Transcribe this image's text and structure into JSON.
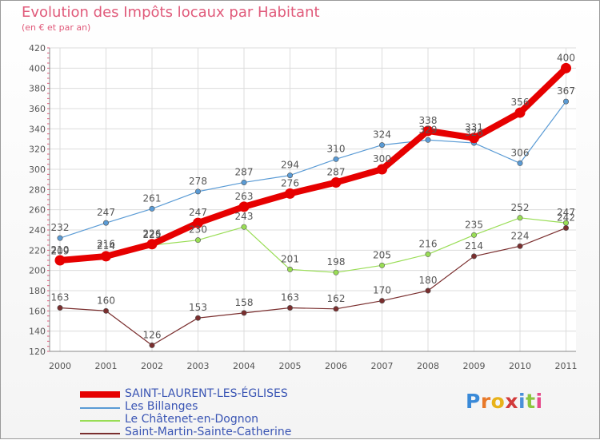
{
  "header": {
    "title": "Evolution des Impôts locaux par Habitant",
    "subtitle": "(en € et par an)"
  },
  "brand": {
    "text": "Proxiti",
    "letter_colors": [
      "#3a8ad8",
      "#e8792a",
      "#e8b21a",
      "#d23b3b",
      "#4a90d9",
      "#8cc63f",
      "#e64a8a"
    ]
  },
  "chart_data": {
    "type": "line",
    "title": "Evolution des Impôts locaux par Habitant",
    "subtitle": "(en € et par an)",
    "xlabel": "",
    "ylabel": "",
    "x": [
      "2000",
      "2001",
      "2002",
      "2003",
      "2004",
      "2005",
      "2006",
      "2007",
      "2008",
      "2009",
      "2010",
      "2011"
    ],
    "ylim": [
      120,
      420
    ],
    "yticks": [
      120,
      140,
      160,
      180,
      200,
      220,
      240,
      260,
      280,
      300,
      320,
      340,
      360,
      380,
      400,
      420
    ],
    "grid": true,
    "legend_position": "bottom-left",
    "series": [
      {
        "name": "SAINT-LAURENT-LES-ÉGLISES",
        "color": "#e60000",
        "values": [
          210,
          214,
          226,
          247,
          263,
          276,
          287,
          300,
          338,
          331,
          356,
          400
        ],
        "labels": [
          "210",
          "214",
          "226",
          "247",
          "263",
          "276",
          "287",
          "300",
          "338",
          "331",
          "356",
          "400"
        ],
        "emphasis": true
      },
      {
        "name": "Les Billanges",
        "color": "#5a9bd5",
        "values": [
          232,
          247,
          261,
          278,
          287,
          294,
          310,
          324,
          329,
          326,
          306,
          367
        ],
        "labels": [
          "232",
          "247",
          "261",
          "278",
          "287",
          "294",
          "310",
          "324",
          "329",
          "326",
          "306",
          "367"
        ]
      },
      {
        "name": "Le Châtenet-en-Dognon",
        "color": "#99dd55",
        "values": [
          209,
          216,
          225,
          230,
          243,
          201,
          198,
          205,
          216,
          235,
          252,
          247
        ],
        "labels": [
          "209",
          "216",
          "225",
          "230",
          "243",
          "201",
          "198",
          "205",
          "216",
          "235",
          "252",
          "247"
        ]
      },
      {
        "name": "Saint-Martin-Sainte-Catherine",
        "color": "#7a2e2e",
        "values": [
          163,
          160,
          126,
          153,
          158,
          163,
          162,
          170,
          180,
          214,
          224,
          242
        ],
        "labels": [
          "163",
          "160",
          "126",
          "153",
          "158",
          "163",
          "162",
          "170",
          "180",
          "214",
          "224",
          "242"
        ]
      }
    ]
  }
}
